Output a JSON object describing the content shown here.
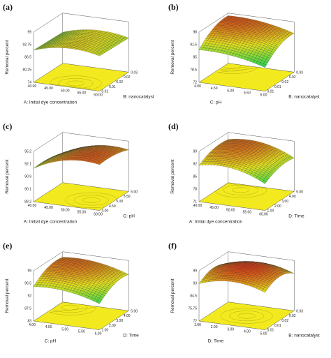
{
  "chart_data": [
    {
      "type": "surface3d",
      "panel_label": "(a)",
      "zlabel": "Removal percent",
      "x": {
        "label": "A: Initial dye concentration",
        "ticks": [
          "40.00",
          "45.00",
          "50.00",
          "55.00",
          "60.00"
        ],
        "range": [
          40,
          60
        ]
      },
      "y": {
        "label": "B: nanocatalyst",
        "ticks": [
          "0.01",
          "0.01",
          "0.02",
          "0.02",
          "0.03"
        ],
        "range": [
          0.01,
          0.03
        ]
      },
      "z": {
        "ticks": [
          "74",
          "80.25",
          "86.5",
          "92.75",
          "99"
        ],
        "range": [
          74,
          99
        ]
      },
      "surface": {
        "base": 93,
        "cx": 0.55,
        "cy": 0.2,
        "ax": -10,
        "ay": 0,
        "bx": -6,
        "by": -4,
        "tilt": 0.5
      }
    },
    {
      "type": "surface3d",
      "panel_label": "(b)",
      "zlabel": "Removal percent",
      "x": {
        "label": "C: pH",
        "ticks": [
          "4.00",
          "4.50",
          "5.00",
          "5.50",
          "6.00"
        ],
        "range": [
          4,
          6
        ]
      },
      "y": {
        "label": "B: nanocatalyst",
        "ticks": [
          "0.01",
          "0.01",
          "0.02",
          "0.02",
          "0.03"
        ],
        "range": [
          0.01,
          0.03
        ]
      },
      "z": {
        "ticks": [
          "72",
          "78.5",
          "85",
          "91.5",
          "98"
        ],
        "range": [
          72,
          98
        ]
      },
      "surface": {
        "base": 97,
        "cx": 0.1,
        "cy": 0.9,
        "ax": -6,
        "ay": -10,
        "bx": -4,
        "by": -8,
        "tilt": 0.2
      }
    },
    {
      "type": "surface3d",
      "panel_label": "(c)",
      "zlabel": "Removal percent",
      "x": {
        "label": "A: Initial dye concentration",
        "ticks": [
          "40.00",
          "45.00",
          "50.00",
          "55.00",
          "60.00"
        ],
        "range": [
          40,
          60
        ]
      },
      "y": {
        "label": "C: pH",
        "ticks": [
          "4.00",
          "4.50",
          "5.00",
          "5.50",
          "6.00"
        ],
        "range": [
          4,
          6
        ]
      },
      "z": {
        "ticks": [
          "89.2",
          "90.1",
          "90.9",
          "92.1",
          "95.2"
        ],
        "range": [
          89.2,
          95.2
        ]
      },
      "surface": {
        "base": 94.8,
        "cx": 0.7,
        "cy": 0.4,
        "ax": -3,
        "ay": -1,
        "bx": -2,
        "by": -0.6,
        "tilt": 0.3
      }
    },
    {
      "type": "surface3d",
      "panel_label": "(d)",
      "zlabel": "Removal percent",
      "x": {
        "label": "A: Initial dye concentration",
        "ticks": [
          "40.00",
          "45.00",
          "50.00",
          "55.00",
          "60.00"
        ],
        "range": [
          40,
          60
        ]
      },
      "y": {
        "label": "D: Time",
        "ticks": [
          "1.00",
          "2.00",
          "3.00",
          "4.00",
          "5.00"
        ],
        "range": [
          1,
          5
        ]
      },
      "z": {
        "ticks": [
          "71",
          "78",
          "85",
          "92",
          "99"
        ],
        "range": [
          71,
          99
        ]
      },
      "surface": {
        "base": 97,
        "cx": 0.3,
        "cy": 0.75,
        "ax": -14,
        "ay": -8,
        "bx": -6,
        "by": -6,
        "tilt": 0.2
      }
    },
    {
      "type": "surface3d",
      "panel_label": "(e)",
      "zlabel": "Removal percent",
      "x": {
        "label": "C: pH",
        "ticks": [
          "4.00",
          "4.50",
          "5.00",
          "5.50",
          "6.00"
        ],
        "range": [
          4,
          6
        ]
      },
      "y": {
        "label": "D: Time",
        "ticks": [
          "1.00",
          "2.00",
          "3.00",
          "4.00",
          "5.00"
        ],
        "range": [
          1,
          5
        ]
      },
      "z": {
        "ticks": [
          "83",
          "87.5",
          "92",
          "96.5",
          "99"
        ],
        "range": [
          83,
          99
        ]
      },
      "surface": {
        "base": 98,
        "cx": 0.2,
        "cy": 0.8,
        "ax": -5,
        "ay": -6,
        "bx": -3,
        "by": -4,
        "tilt": 0.3
      }
    },
    {
      "type": "surface3d",
      "panel_label": "(f)",
      "zlabel": "Removal percent",
      "x": {
        "label": "D: Time",
        "ticks": [
          "1.00",
          "2.00",
          "3.00",
          "4.00",
          "5.00"
        ],
        "range": [
          1,
          5
        ]
      },
      "y": {
        "label": "B: nanocatalyst",
        "ticks": [
          "0.01",
          "0.01",
          "0.02",
          "0.02",
          "0.03"
        ],
        "range": [
          0.01,
          0.03
        ]
      },
      "z": {
        "ticks": [
          "72",
          "75.75",
          "84.5",
          "93",
          "99"
        ],
        "range": [
          72,
          99
        ]
      },
      "surface": {
        "base": 99,
        "cx": 0.5,
        "cy": 0.5,
        "ax": -14,
        "ay": -14,
        "bx": -4,
        "by": -4,
        "tilt": 0
      }
    }
  ],
  "colors": {
    "floor": "#f2ea1e",
    "axis": "#555555",
    "ramp": [
      "#1f35d6",
      "#16c8f0",
      "#2fd64f",
      "#e3e01e",
      "#d63a14"
    ]
  }
}
